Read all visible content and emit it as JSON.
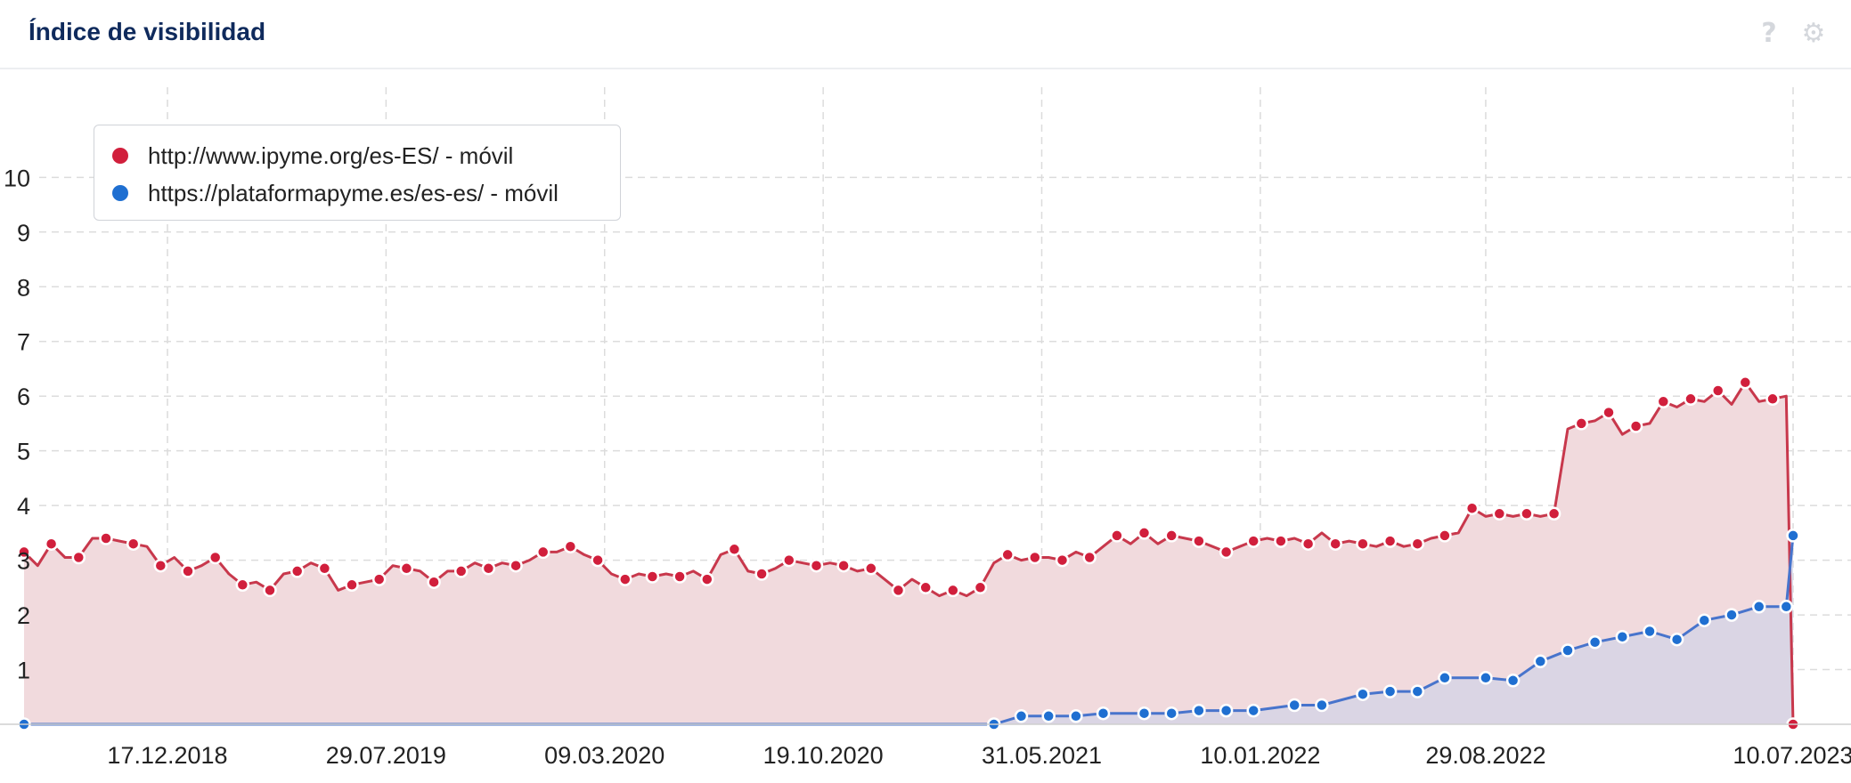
{
  "header": {
    "title": "Índice de visibilidad",
    "help_icon": "?",
    "settings_icon": "⚙"
  },
  "legend": {
    "series1": "http://www.ipyme.org/es-ES/ - móvil",
    "series2": "https://plataformapyme.es/es-es/ - móvil"
  },
  "colors": {
    "series1": "#c8384c",
    "series1_marker": "#d11f3c",
    "series1_fill": "#f1dadd",
    "series2": "#4874cc",
    "series2_marker": "#1f6fd1",
    "series2_fill": "#d4d3e6",
    "grid": "#dcdcdc"
  },
  "chart_data": {
    "type": "line",
    "x_axis": {
      "type": "time",
      "ticks": [
        "17.12.2018",
        "29.07.2019",
        "09.03.2020",
        "19.10.2020",
        "31.05.2021",
        "10.01.2022",
        "29.08.2022",
        "10.07.2023"
      ],
      "range": [
        "2018-07-23",
        "2023-07-17"
      ]
    },
    "y_axis": {
      "ylim": [
        0,
        10.9
      ],
      "ticks": [
        1,
        2,
        3,
        4,
        5,
        6,
        7,
        8,
        9,
        10
      ]
    },
    "grid": true,
    "legend_position": "top-left",
    "series": [
      {
        "name": "http://www.ipyme.org/es-ES/ - móvil",
        "points": [
          [
            "2018-07-23",
            3.15
          ],
          [
            "2018-08-06",
            2.9
          ],
          [
            "2018-08-20",
            3.3
          ],
          [
            "2018-09-03",
            3.05
          ],
          [
            "2018-09-17",
            3.05
          ],
          [
            "2018-10-01",
            3.4
          ],
          [
            "2018-10-15",
            3.4
          ],
          [
            "2018-10-29",
            3.35
          ],
          [
            "2018-11-12",
            3.3
          ],
          [
            "2018-11-26",
            3.25
          ],
          [
            "2018-12-10",
            2.9
          ],
          [
            "2018-12-24",
            3.05
          ],
          [
            "2019-01-07",
            2.8
          ],
          [
            "2019-01-21",
            2.9
          ],
          [
            "2019-02-04",
            3.05
          ],
          [
            "2019-02-18",
            2.75
          ],
          [
            "2019-03-04",
            2.55
          ],
          [
            "2019-03-18",
            2.6
          ],
          [
            "2019-04-01",
            2.45
          ],
          [
            "2019-04-15",
            2.75
          ],
          [
            "2019-04-29",
            2.8
          ],
          [
            "2019-05-13",
            2.95
          ],
          [
            "2019-05-27",
            2.85
          ],
          [
            "2019-06-10",
            2.45
          ],
          [
            "2019-06-24",
            2.55
          ],
          [
            "2019-07-08",
            2.6
          ],
          [
            "2019-07-22",
            2.65
          ],
          [
            "2019-08-05",
            2.9
          ],
          [
            "2019-08-19",
            2.85
          ],
          [
            "2019-09-02",
            2.8
          ],
          [
            "2019-09-16",
            2.6
          ],
          [
            "2019-09-30",
            2.8
          ],
          [
            "2019-10-14",
            2.8
          ],
          [
            "2019-10-28",
            2.95
          ],
          [
            "2019-11-11",
            2.85
          ],
          [
            "2019-11-25",
            2.95
          ],
          [
            "2019-12-09",
            2.9
          ],
          [
            "2019-12-23",
            3.0
          ],
          [
            "2020-01-06",
            3.15
          ],
          [
            "2020-01-20",
            3.15
          ],
          [
            "2020-02-03",
            3.25
          ],
          [
            "2020-02-17",
            3.1
          ],
          [
            "2020-03-02",
            3.0
          ],
          [
            "2020-03-16",
            2.75
          ],
          [
            "2020-03-30",
            2.65
          ],
          [
            "2020-04-13",
            2.75
          ],
          [
            "2020-04-27",
            2.7
          ],
          [
            "2020-05-11",
            2.75
          ],
          [
            "2020-05-25",
            2.7
          ],
          [
            "2020-06-08",
            2.8
          ],
          [
            "2020-06-22",
            2.65
          ],
          [
            "2020-07-06",
            3.1
          ],
          [
            "2020-07-20",
            3.2
          ],
          [
            "2020-08-03",
            2.8
          ],
          [
            "2020-08-17",
            2.75
          ],
          [
            "2020-08-31",
            2.85
          ],
          [
            "2020-09-14",
            3.0
          ],
          [
            "2020-09-28",
            2.95
          ],
          [
            "2020-10-12",
            2.9
          ],
          [
            "2020-10-26",
            2.95
          ],
          [
            "2020-11-09",
            2.9
          ],
          [
            "2020-11-23",
            2.8
          ],
          [
            "2020-12-07",
            2.85
          ],
          [
            "2020-12-21",
            2.65
          ],
          [
            "2021-01-04",
            2.45
          ],
          [
            "2021-01-18",
            2.65
          ],
          [
            "2021-02-01",
            2.5
          ],
          [
            "2021-02-15",
            2.35
          ],
          [
            "2021-03-01",
            2.45
          ],
          [
            "2021-03-15",
            2.35
          ],
          [
            "2021-03-29",
            2.5
          ],
          [
            "2021-04-12",
            2.95
          ],
          [
            "2021-04-26",
            3.1
          ],
          [
            "2021-05-10",
            3.0
          ],
          [
            "2021-05-24",
            3.05
          ],
          [
            "2021-06-07",
            3.05
          ],
          [
            "2021-06-21",
            3.0
          ],
          [
            "2021-07-05",
            3.15
          ],
          [
            "2021-07-19",
            3.05
          ],
          [
            "2021-08-02",
            3.25
          ],
          [
            "2021-08-16",
            3.45
          ],
          [
            "2021-08-30",
            3.3
          ],
          [
            "2021-09-13",
            3.5
          ],
          [
            "2021-09-27",
            3.3
          ],
          [
            "2021-10-11",
            3.45
          ],
          [
            "2021-10-25",
            3.4
          ],
          [
            "2021-11-08",
            3.35
          ],
          [
            "2021-11-22",
            3.25
          ],
          [
            "2021-12-06",
            3.15
          ],
          [
            "2021-12-20",
            3.25
          ],
          [
            "2022-01-03",
            3.35
          ],
          [
            "2022-01-17",
            3.4
          ],
          [
            "2022-01-31",
            3.35
          ],
          [
            "2022-02-14",
            3.4
          ],
          [
            "2022-02-28",
            3.3
          ],
          [
            "2022-03-14",
            3.5
          ],
          [
            "2022-03-28",
            3.3
          ],
          [
            "2022-04-11",
            3.35
          ],
          [
            "2022-04-25",
            3.3
          ],
          [
            "2022-05-09",
            3.25
          ],
          [
            "2022-05-23",
            3.35
          ],
          [
            "2022-06-06",
            3.25
          ],
          [
            "2022-06-20",
            3.3
          ],
          [
            "2022-07-04",
            3.4
          ],
          [
            "2022-07-18",
            3.45
          ],
          [
            "2022-08-01",
            3.5
          ],
          [
            "2022-08-15",
            3.95
          ],
          [
            "2022-08-29",
            3.8
          ],
          [
            "2022-09-12",
            3.85
          ],
          [
            "2022-09-26",
            3.8
          ],
          [
            "2022-10-10",
            3.85
          ],
          [
            "2022-10-24",
            3.8
          ],
          [
            "2022-11-07",
            3.85
          ],
          [
            "2022-11-21",
            5.4
          ],
          [
            "2022-12-05",
            5.5
          ],
          [
            "2022-12-19",
            5.55
          ],
          [
            "2023-01-02",
            5.7
          ],
          [
            "2023-01-16",
            5.3
          ],
          [
            "2023-01-30",
            5.45
          ],
          [
            "2023-02-13",
            5.5
          ],
          [
            "2023-02-27",
            5.9
          ],
          [
            "2023-03-13",
            5.8
          ],
          [
            "2023-03-27",
            5.95
          ],
          [
            "2023-04-10",
            5.9
          ],
          [
            "2023-04-24",
            6.1
          ],
          [
            "2023-05-08",
            5.85
          ],
          [
            "2023-05-22",
            6.25
          ],
          [
            "2023-06-05",
            5.9
          ],
          [
            "2023-06-19",
            5.95
          ],
          [
            "2023-07-03",
            6.0
          ],
          [
            "2023-07-10",
            0.0
          ]
        ]
      },
      {
        "name": "https://plataformapyme.es/es-es/ - móvil",
        "points": [
          [
            "2018-07-23",
            0.0
          ],
          [
            "2021-04-12",
            0.0
          ],
          [
            "2021-05-10",
            0.15
          ],
          [
            "2021-06-07",
            0.15
          ],
          [
            "2021-07-05",
            0.15
          ],
          [
            "2021-08-02",
            0.2
          ],
          [
            "2021-09-13",
            0.2
          ],
          [
            "2021-10-11",
            0.2
          ],
          [
            "2021-11-08",
            0.25
          ],
          [
            "2021-12-06",
            0.25
          ],
          [
            "2022-01-03",
            0.25
          ],
          [
            "2022-02-14",
            0.35
          ],
          [
            "2022-03-14",
            0.35
          ],
          [
            "2022-04-25",
            0.55
          ],
          [
            "2022-05-23",
            0.6
          ],
          [
            "2022-06-20",
            0.6
          ],
          [
            "2022-07-18",
            0.85
          ],
          [
            "2022-08-29",
            0.85
          ],
          [
            "2022-09-26",
            0.8
          ],
          [
            "2022-10-24",
            1.15
          ],
          [
            "2022-11-21",
            1.35
          ],
          [
            "2022-12-19",
            1.5
          ],
          [
            "2023-01-16",
            1.6
          ],
          [
            "2023-02-13",
            1.7
          ],
          [
            "2023-03-13",
            1.55
          ],
          [
            "2023-04-10",
            1.9
          ],
          [
            "2023-05-08",
            2.0
          ],
          [
            "2023-06-05",
            2.15
          ],
          [
            "2023-07-03",
            2.15
          ],
          [
            "2023-07-10",
            3.45
          ]
        ]
      }
    ]
  }
}
